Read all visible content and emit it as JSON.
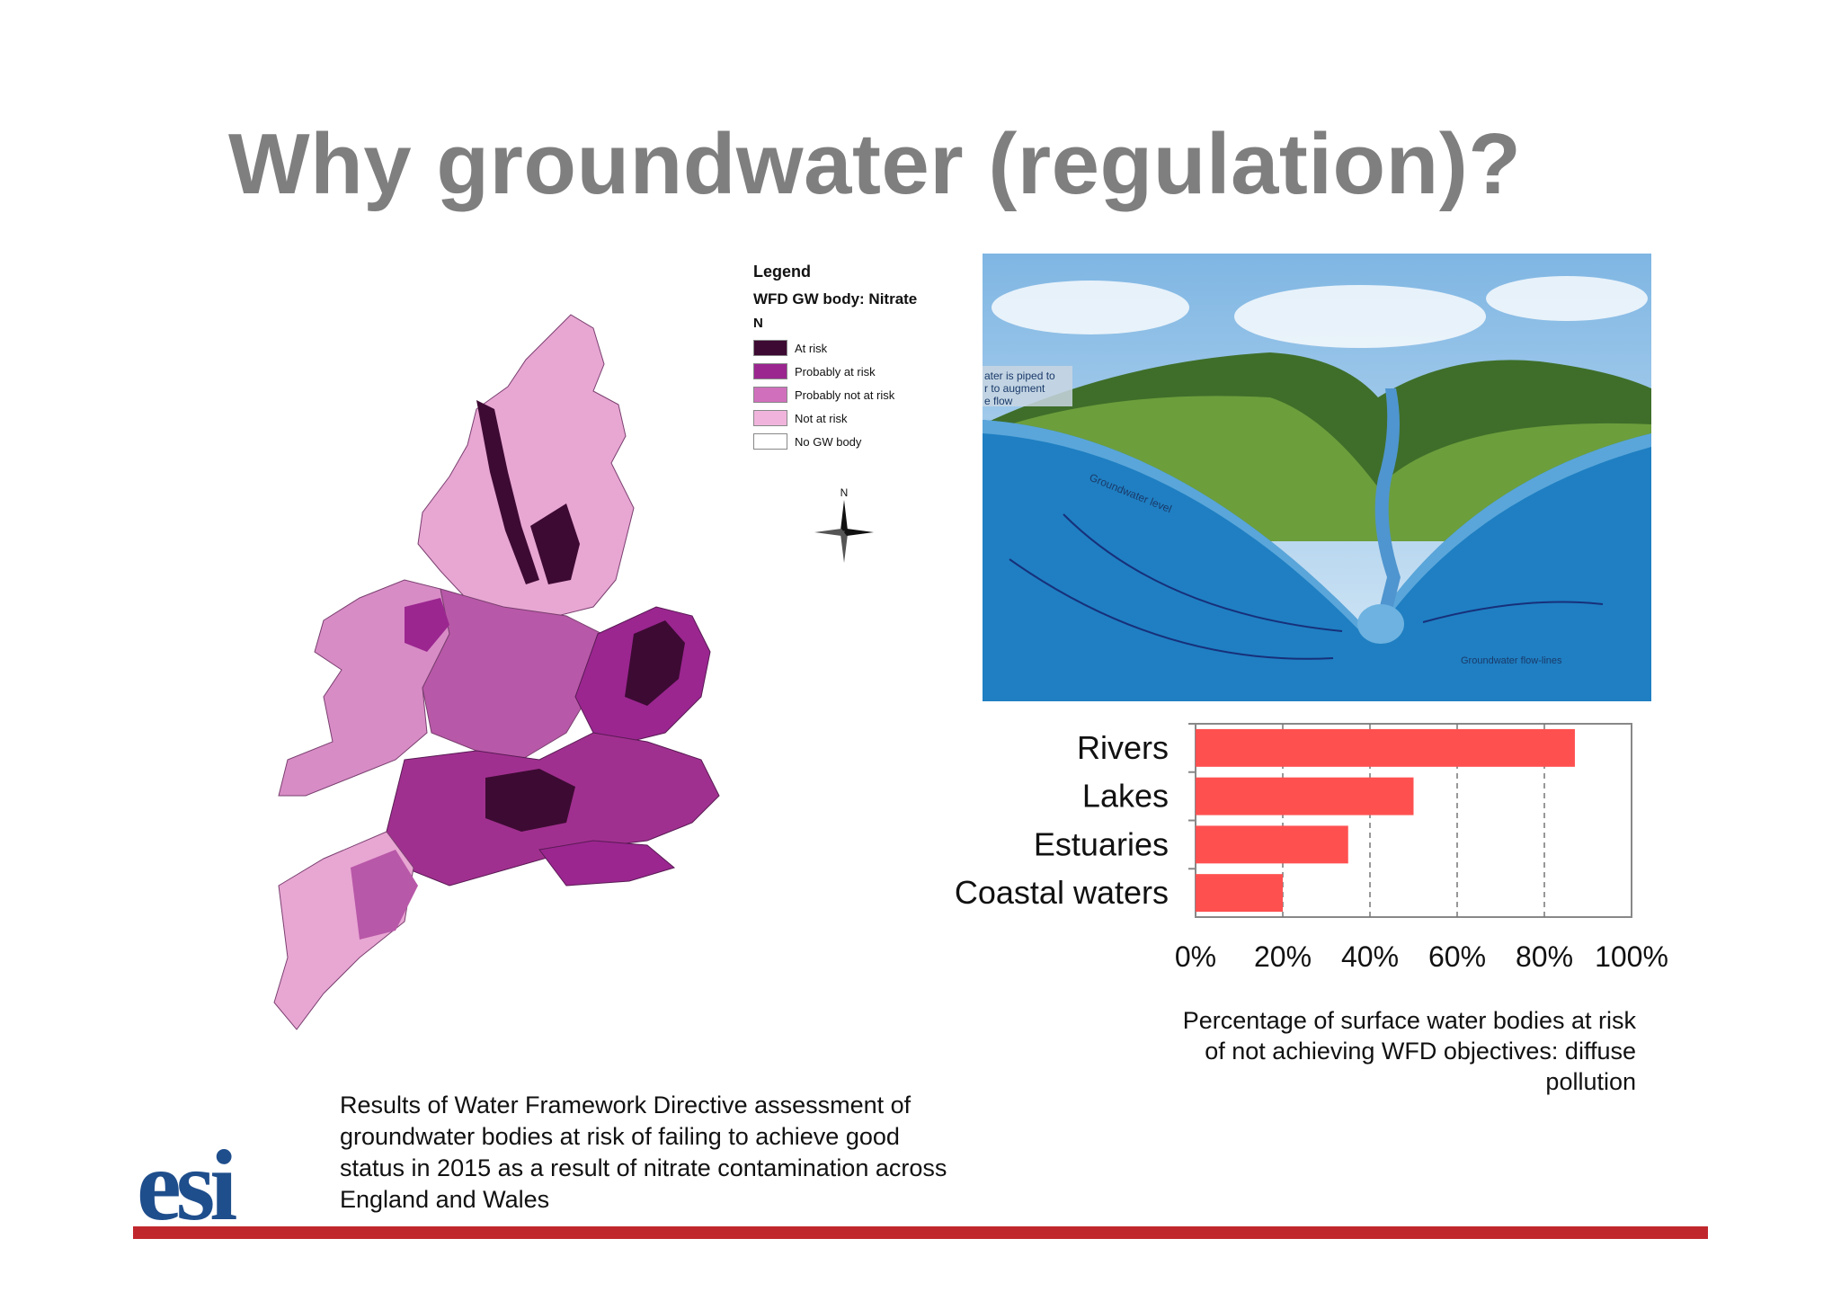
{
  "slide": {
    "title": "Why groundwater (regulation)?",
    "map_caption": "Results of Water Framework Directive assessment of groundwater bodies at risk of failing to achieve good status in 2015 as a result of nitrate contamination across England and Wales",
    "chart_caption": "Percentage of surface water bodies at risk of not achieving WFD objectives: diffuse pollution",
    "logo_text": "esi"
  },
  "legend": {
    "title": "Legend",
    "subtitle": "WFD GW body: Nitrate",
    "n_label": "N",
    "items": [
      {
        "label": "At risk",
        "color": "#3d0a33"
      },
      {
        "label": "Probably at risk",
        "color": "#9b2690"
      },
      {
        "label": "Probably not at risk",
        "color": "#d070bd"
      },
      {
        "label": "Not at risk",
        "color": "#f0b4dc"
      },
      {
        "label": "No GW body",
        "color": "#ffffff"
      }
    ]
  },
  "compass": {
    "label": "N"
  },
  "photo": {
    "labels": {
      "piped": "ater is piped to",
      "augment": "r to augment",
      "flow": "e flow",
      "gw_level": "Groundwater level",
      "flow_lines": "Groundwater flow-lines"
    }
  },
  "chart_data": {
    "type": "bar",
    "orientation": "horizontal",
    "categories": [
      "Rivers",
      "Lakes",
      "Estuaries",
      "Coastal waters"
    ],
    "values": [
      87,
      50,
      35,
      20
    ],
    "xlim": [
      0,
      100
    ],
    "ticks": [
      "0%",
      "20%",
      "40%",
      "60%",
      "80%",
      "100%"
    ],
    "bar_color": "#ff5050",
    "grid": "vertical-dashed"
  }
}
